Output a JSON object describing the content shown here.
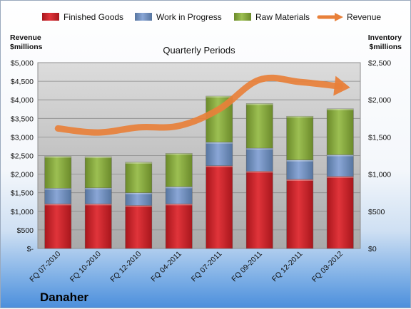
{
  "company": "Danaher",
  "chart_data": {
    "type": "bar",
    "stacked": true,
    "title": "Quarterly Periods",
    "categories": [
      "FQ 07-2010",
      "FQ 10-2010",
      "FQ 12-2010",
      "FQ 04-2011",
      "FQ 07-2011",
      "FQ 09-2011",
      "FQ 12-2011",
      "FQ 03-2012"
    ],
    "series": [
      {
        "name": "Finished Goods",
        "color": "#c8262c",
        "values": [
          600,
          600,
          580,
          600,
          1115,
          1040,
          930,
          970
        ]
      },
      {
        "name": "Work in Progress",
        "color": "#6f8fc6",
        "values": [
          210,
          215,
          170,
          230,
          315,
          310,
          260,
          290
        ]
      },
      {
        "name": "Raw Materials",
        "color": "#86a83c",
        "values": [
          430,
          420,
          410,
          450,
          620,
          600,
          590,
          620
        ]
      }
    ],
    "line_series": {
      "name": "Revenue",
      "color": "#e8803a",
      "values": [
        3230,
        3120,
        3260,
        3300,
        3750,
        4540,
        4480,
        4360
      ]
    },
    "left_axis": {
      "label_line1": "Revenue",
      "label_line2": "$millions",
      "range": [
        0,
        5000
      ],
      "ticks": [
        0,
        500,
        1000,
        1500,
        2000,
        2500,
        3000,
        3500,
        4000,
        4500,
        5000
      ],
      "tick_labels": [
        "$-",
        "$500",
        "$1,000",
        "$1,500",
        "$2,000",
        "$2,500",
        "$3,000",
        "$3,500",
        "$4,000",
        "$4,500",
        "$5,000"
      ]
    },
    "right_axis": {
      "label_line1": "Inventory",
      "label_line2": "$millions",
      "range": [
        0,
        2500
      ],
      "ticks": [
        0,
        500,
        1000,
        1500,
        2000,
        2500
      ],
      "tick_labels": [
        "$0",
        "$500",
        "$1,000",
        "$1,500",
        "$2,000",
        "$2,500"
      ]
    },
    "legend": {
      "position": "top"
    },
    "grid": true
  }
}
